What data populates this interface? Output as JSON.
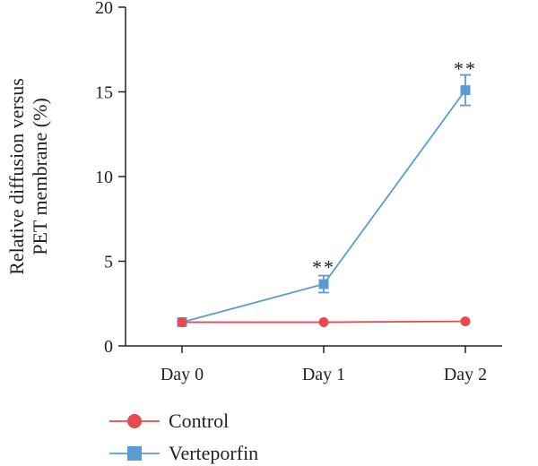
{
  "chart_data": {
    "type": "line",
    "categories": [
      "Day 0",
      "Day 1",
      "Day 2"
    ],
    "ylabel_lines": [
      "Relative diffusion versus",
      "PET membrane (%)"
    ],
    "xlabel": "",
    "title": "",
    "ylim": [
      0,
      20
    ],
    "yticks": [
      0,
      5,
      10,
      15,
      20
    ],
    "grid": false,
    "legend_position": "bottom-left",
    "series": [
      {
        "name": "Control",
        "color": "#e8494f",
        "marker": "circle",
        "values": [
          1.4,
          1.4,
          1.45
        ],
        "errors": [
          0.05,
          0.05,
          0.05
        ]
      },
      {
        "name": "Verteporfin",
        "color": "#5b9bd5",
        "marker": "square",
        "values": [
          1.4,
          3.65,
          15.1
        ],
        "errors": [
          0.05,
          0.5,
          0.9
        ]
      }
    ],
    "annotations": [
      {
        "category": "Day 1",
        "y": 4.8,
        "text": "**"
      },
      {
        "category": "Day 2",
        "y": 16.5,
        "text": "**"
      }
    ]
  }
}
